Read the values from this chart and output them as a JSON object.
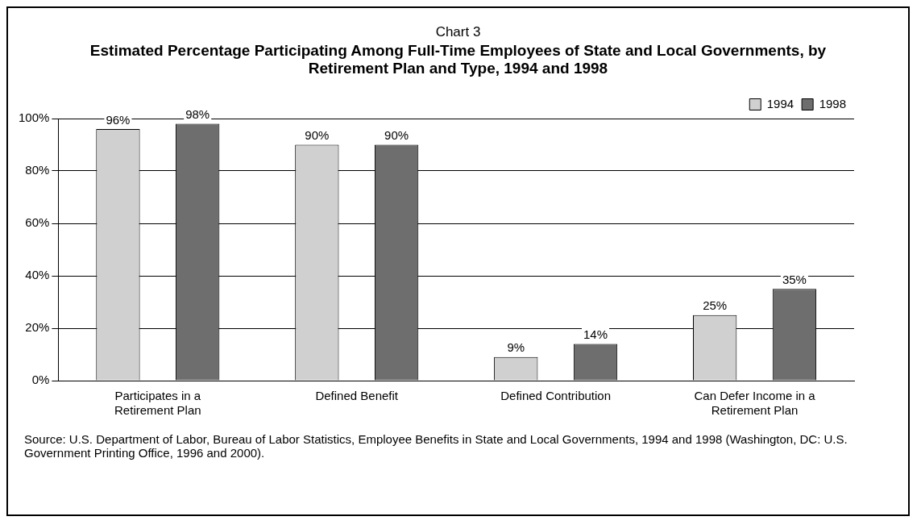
{
  "chart_data": {
    "type": "bar",
    "title": "Chart 3",
    "subtitle": "Estimated Percentage Participating Among Full-Time Employees of State and Local Governments, by Retirement Plan and Type, 1994 and 1998",
    "categories": [
      "Participates in a Retirement Plan",
      "Defined Benefit",
      "Defined Contribution",
      "Can Defer Income in a Retirement Plan"
    ],
    "series": [
      {
        "name": "1994",
        "color": "#d0d0d0",
        "values": [
          96,
          90,
          9,
          25
        ],
        "value_labels": [
          "96%",
          "90%",
          "9%",
          "25%"
        ]
      },
      {
        "name": "1998",
        "color": "#6e6e6e",
        "values": [
          98,
          90,
          14,
          35
        ],
        "value_labels": [
          "98%",
          "90%",
          "14%",
          "35%"
        ]
      }
    ],
    "ylim": [
      0,
      100
    ],
    "yticks": [
      {
        "value": 0,
        "label": "0%"
      },
      {
        "value": 20,
        "label": "20%"
      },
      {
        "value": 40,
        "label": "40%"
      },
      {
        "value": 60,
        "label": "60%"
      },
      {
        "value": 80,
        "label": "80%"
      },
      {
        "value": 100,
        "label": "100%"
      }
    ],
    "grid": "y",
    "legend": "top right",
    "annotations": [
      "Source: U.S. Department of Labor, Bureau of Labor Statistics, Employee Benefits in State and Local Governments, 1994 and 1998 (Washington, DC: U.S. Government Printing Office, 1996 and 2000)."
    ]
  }
}
